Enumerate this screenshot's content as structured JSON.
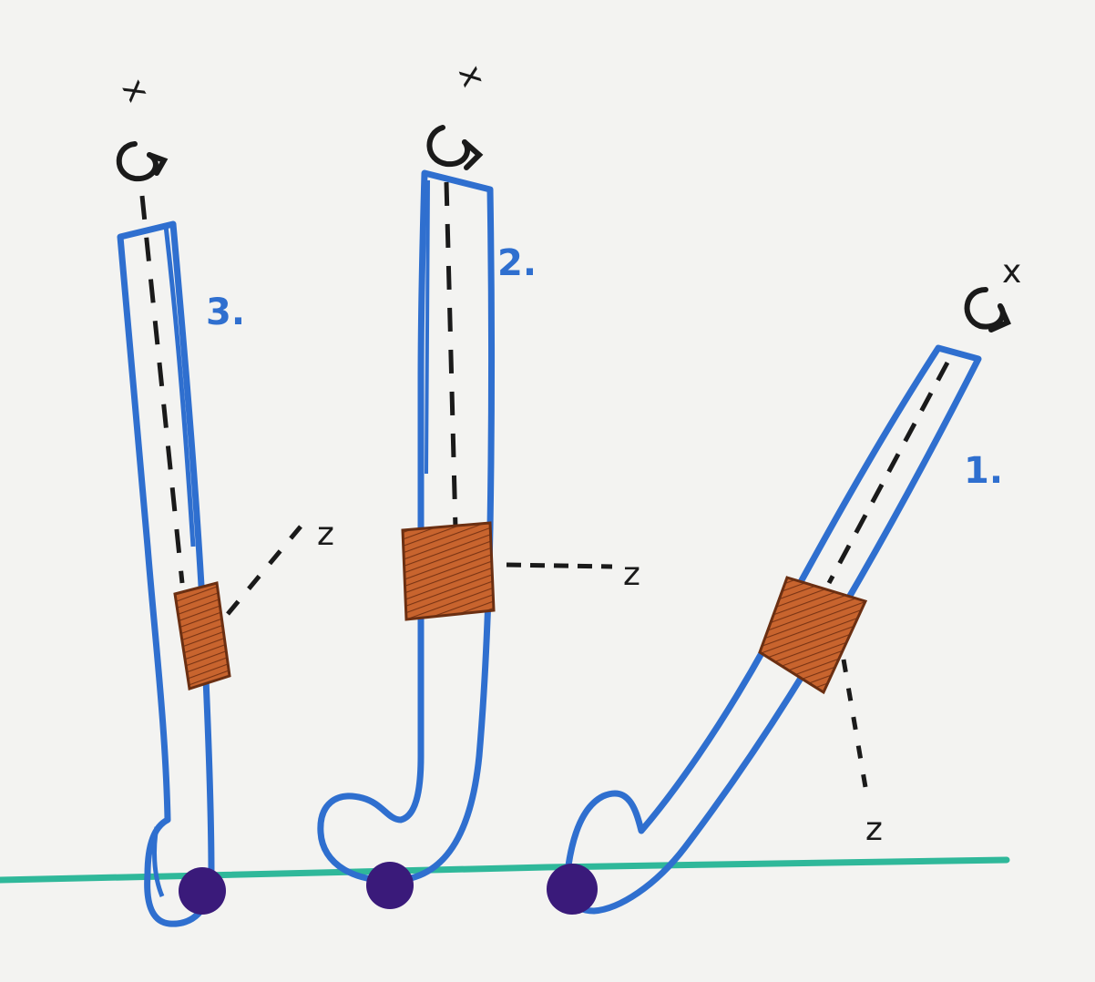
{
  "diagram": {
    "sticks": [
      {
        "number_label": "3.",
        "axis_label": "x",
        "tape_label": "z"
      },
      {
        "number_label": "2.",
        "axis_label": "x",
        "tape_label": "z"
      },
      {
        "number_label": "1.",
        "axis_label": "x",
        "tape_label": "z"
      }
    ],
    "colors": {
      "board": "#f3f3f1",
      "stick_outline": "#2f6fcf",
      "tape_fill": "#c8642e",
      "tape_hatch": "#6b2f12",
      "ball": "#3a1a7a",
      "ground_line": "#2fb89a",
      "marker_black": "#1a1a1a"
    }
  }
}
